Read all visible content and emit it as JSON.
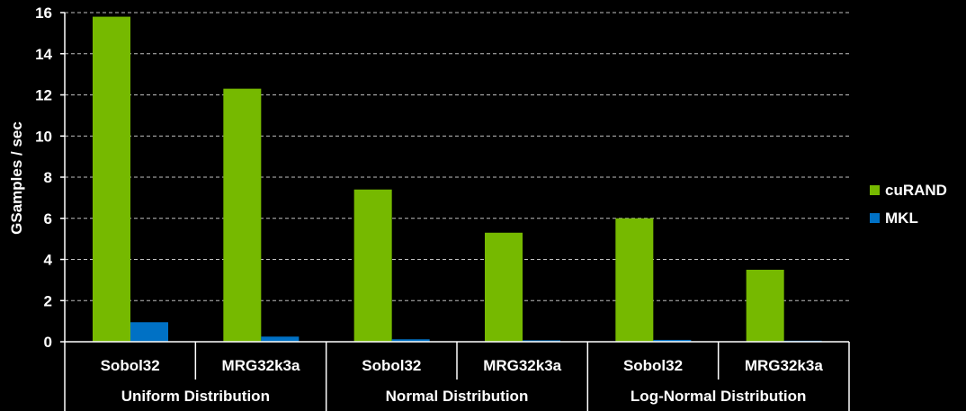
{
  "chart_data": {
    "type": "bar",
    "title": "",
    "xlabel": "",
    "ylabel": "GSamples / sec",
    "ylim": [
      0,
      16
    ],
    "yticks": [
      0,
      2,
      4,
      6,
      8,
      10,
      12,
      14,
      16
    ],
    "grid": true,
    "legend_position": "right",
    "categories": [
      "Sobol32",
      "MRG32k3a",
      "Sobol32",
      "MRG32k3a",
      "Sobol32",
      "MRG32k3a"
    ],
    "groups": [
      {
        "label": "Uniform Distribution",
        "categories": [
          0,
          1
        ]
      },
      {
        "label": "Normal Distribution",
        "categories": [
          2,
          3
        ]
      },
      {
        "label": "Log-Normal Distribution",
        "categories": [
          4,
          5
        ]
      }
    ],
    "series": [
      {
        "name": "cuRAND",
        "color": "#76b900",
        "values": [
          15.8,
          12.3,
          7.4,
          5.3,
          6.0,
          3.5
        ]
      },
      {
        "name": "MKL",
        "color": "#0071c5",
        "values": [
          0.95,
          0.25,
          0.12,
          0.07,
          0.09,
          0.05
        ]
      }
    ]
  }
}
